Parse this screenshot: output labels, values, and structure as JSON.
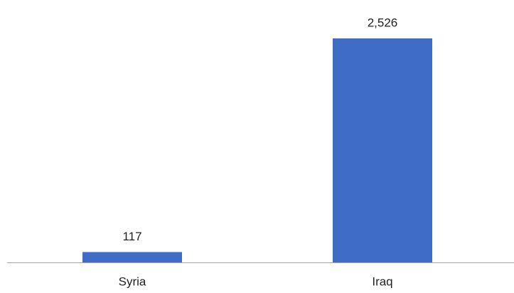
{
  "chart_data": {
    "type": "bar",
    "categories": [
      "Syria",
      "Iraq"
    ],
    "values": [
      117,
      2526
    ],
    "value_labels": [
      "117",
      "2,526"
    ],
    "color": "#3f6cc6"
  }
}
